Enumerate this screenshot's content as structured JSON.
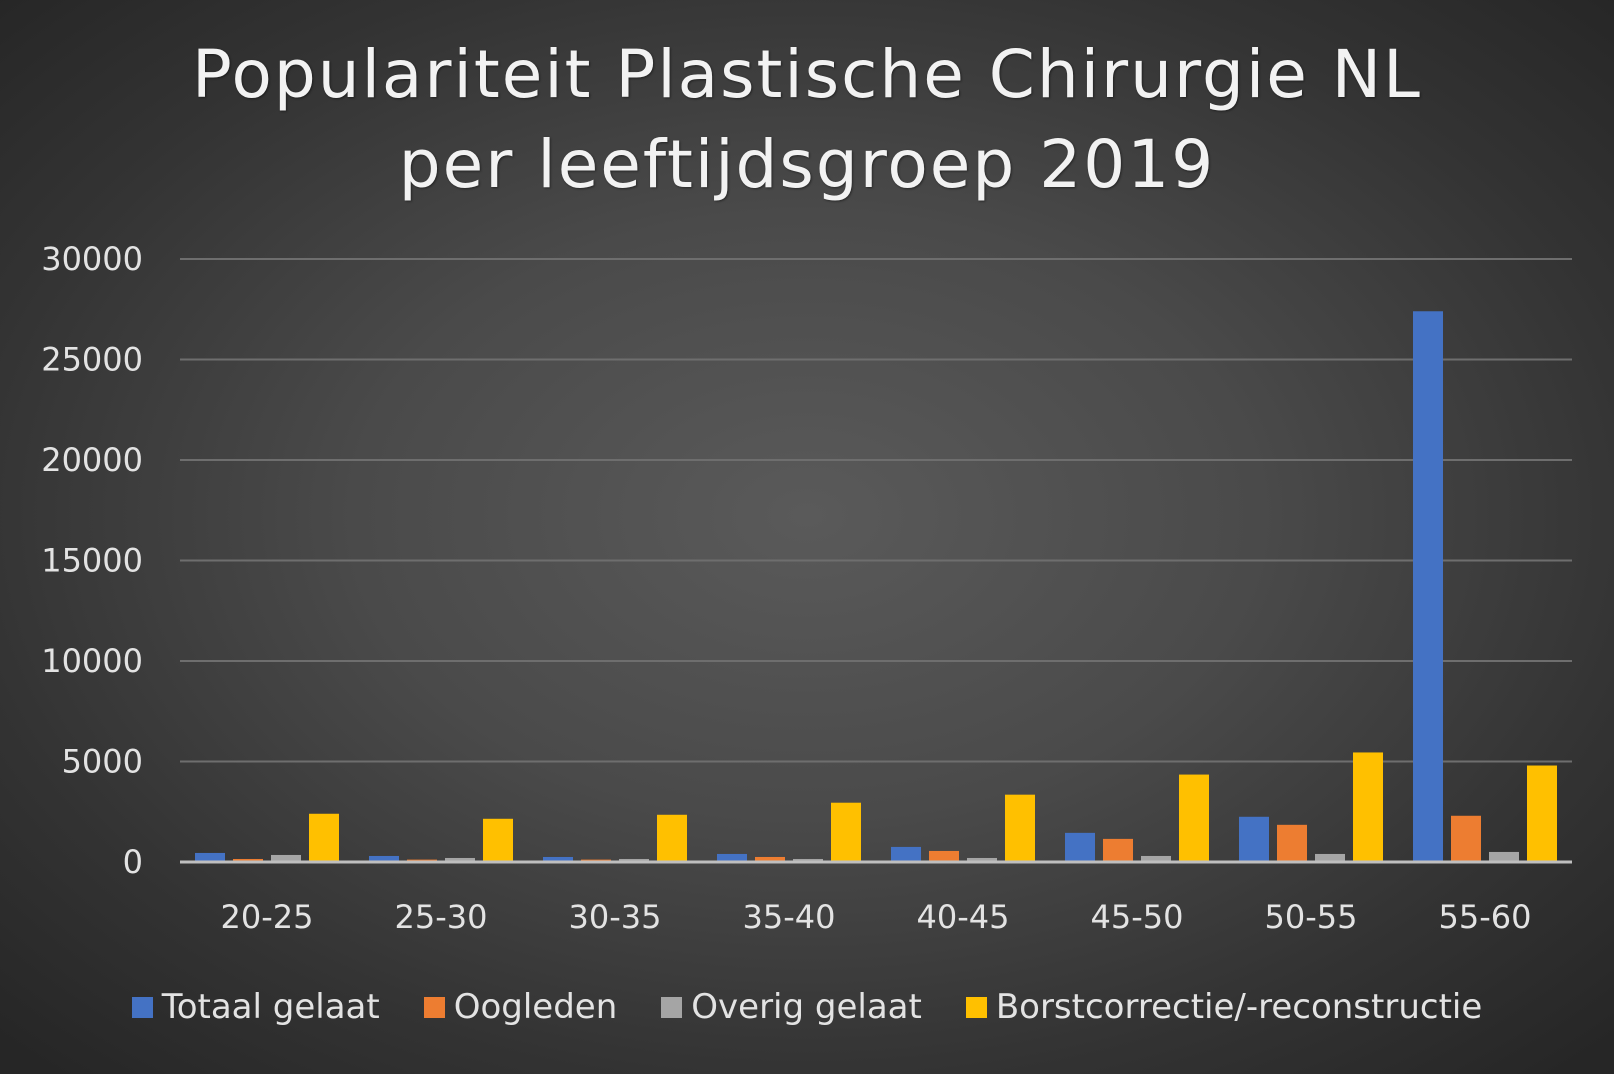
{
  "title": {
    "line1": "Populariteit Plastische Chirurgie NL",
    "line2": "per leeftijdsgroep 2019"
  },
  "chart_data": {
    "type": "bar",
    "categories": [
      "20-25",
      "25-30",
      "30-35",
      "35-40",
      "40-45",
      "45-50",
      "50-55",
      "55-60"
    ],
    "series": [
      {
        "name": "Totaal gelaat",
        "color": "#4472c4",
        "values": [
          450,
          300,
          250,
          400,
          750,
          1450,
          2250,
          27400
        ]
      },
      {
        "name": "Oogleden",
        "color": "#ed7d31",
        "values": [
          150,
          120,
          120,
          250,
          550,
          1150,
          1850,
          2300
        ]
      },
      {
        "name": "Overig gelaat",
        "color": "#a5a5a5",
        "values": [
          350,
          200,
          150,
          150,
          200,
          300,
          400,
          500
        ]
      },
      {
        "name": "Borstcorrectie/-reconstructie",
        "color": "#ffc000",
        "values": [
          2400,
          2150,
          2350,
          2950,
          3350,
          4350,
          5450,
          4800
        ]
      }
    ],
    "ylim": [
      0,
      30000
    ],
    "yticks": [
      "0",
      "5000",
      "10000",
      "15000",
      "20000",
      "25000",
      "30000"
    ],
    "xlabel": "",
    "ylabel": "",
    "grid": true,
    "legend_position": "bottom"
  }
}
